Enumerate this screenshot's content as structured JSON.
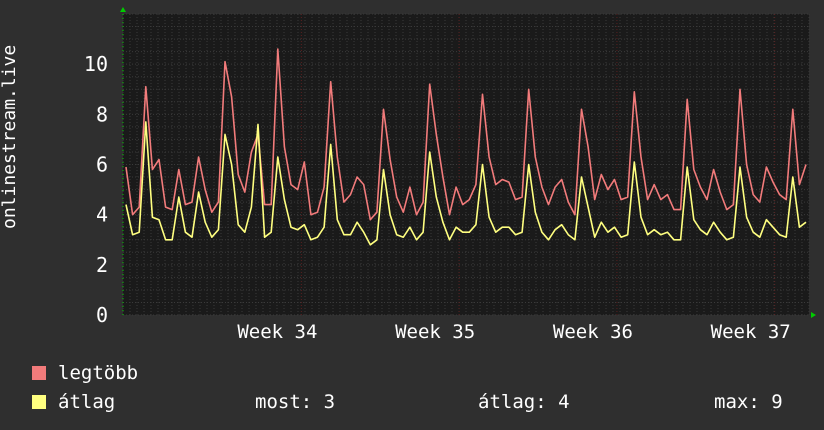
{
  "chart_data": {
    "type": "line",
    "ylabel": "onlinestream.live",
    "ylim": [
      0,
      12
    ],
    "yticks": [
      0,
      2,
      4,
      6,
      8,
      10
    ],
    "xticks": [
      {
        "label": "Week 34",
        "x": 0.26
      },
      {
        "label": "Week 35",
        "x": 0.49
      },
      {
        "label": "Week 36",
        "x": 0.72
      },
      {
        "label": "Week 37",
        "x": 0.95
      }
    ],
    "grid": true,
    "series": [
      {
        "name": "legtöbb",
        "color": "#f27b7b",
        "values": [
          5.9,
          4.0,
          4.3,
          9.1,
          5.8,
          6.2,
          4.3,
          4.2,
          5.8,
          4.4,
          4.5,
          6.3,
          5.0,
          4.1,
          4.5,
          10.1,
          8.7,
          5.6,
          4.9,
          6.5,
          7.2,
          4.4,
          4.4,
          10.6,
          6.7,
          5.2,
          5.0,
          6.1,
          4.0,
          4.1,
          5.1,
          9.3,
          6.3,
          4.5,
          4.8,
          5.5,
          5.2,
          3.8,
          4.1,
          8.2,
          6.2,
          4.7,
          4.1,
          5.1,
          4.0,
          4.5,
          9.2,
          7.2,
          5.5,
          4.0,
          5.1,
          4.4,
          4.6,
          5.2,
          8.8,
          6.3,
          5.2,
          5.4,
          5.3,
          4.6,
          4.7,
          9.0,
          6.3,
          5.1,
          4.4,
          5.1,
          5.4,
          4.5,
          4.0,
          8.2,
          6.7,
          4.6,
          5.6,
          5.0,
          5.4,
          4.6,
          4.7,
          8.9,
          6.3,
          4.6,
          5.2,
          4.6,
          4.8,
          4.2,
          4.2,
          8.6,
          5.8,
          5.1,
          4.6,
          5.8,
          4.9,
          4.2,
          4.4,
          9.0,
          6.0,
          4.8,
          4.5,
          5.9,
          5.3,
          4.8,
          4.6,
          8.2,
          5.2,
          6.0
        ],
        "values_note": ""
      },
      {
        "name": "átlag",
        "color": "#ffff80",
        "values": [
          4.4,
          3.2,
          3.3,
          7.7,
          3.9,
          3.8,
          3.0,
          3.0,
          4.7,
          3.3,
          3.1,
          4.9,
          3.7,
          3.1,
          3.4,
          7.2,
          6.0,
          3.6,
          3.3,
          4.3,
          7.6,
          3.1,
          3.3,
          6.3,
          4.6,
          3.5,
          3.4,
          3.6,
          3.0,
          3.1,
          3.5,
          6.8,
          3.8,
          3.2,
          3.2,
          3.7,
          3.3,
          2.8,
          3.0,
          5.8,
          4.0,
          3.2,
          3.1,
          3.5,
          3.0,
          3.3,
          6.5,
          4.7,
          3.7,
          3.0,
          3.5,
          3.3,
          3.3,
          3.6,
          6.0,
          3.9,
          3.3,
          3.5,
          3.5,
          3.2,
          3.3,
          6.0,
          4.1,
          3.3,
          3.0,
          3.4,
          3.6,
          3.2,
          3.0,
          5.5,
          4.3,
          3.1,
          3.7,
          3.3,
          3.5,
          3.1,
          3.2,
          6.1,
          3.9,
          3.2,
          3.4,
          3.2,
          3.3,
          3.0,
          3.0,
          5.9,
          3.8,
          3.4,
          3.2,
          3.7,
          3.3,
          3.0,
          3.1,
          5.9,
          3.9,
          3.3,
          3.1,
          3.8,
          3.5,
          3.2,
          3.1,
          5.5,
          3.5,
          3.7
        ],
        "values_note": ""
      }
    ]
  },
  "legend": {
    "items": [
      {
        "label": "legtöbb",
        "color": "#f27b7b"
      },
      {
        "label": "átlag",
        "color": "#ffff80"
      }
    ],
    "stats": {
      "now": "most: 3",
      "avg": "átlag: 4",
      "max": "max: 9"
    }
  },
  "colors": {
    "background": "#2f2f2f",
    "plot_background": "#1a1a1a",
    "grid": "#3a3a3a",
    "grid_major": "#5a2020",
    "arrow": "#00cc00"
  }
}
